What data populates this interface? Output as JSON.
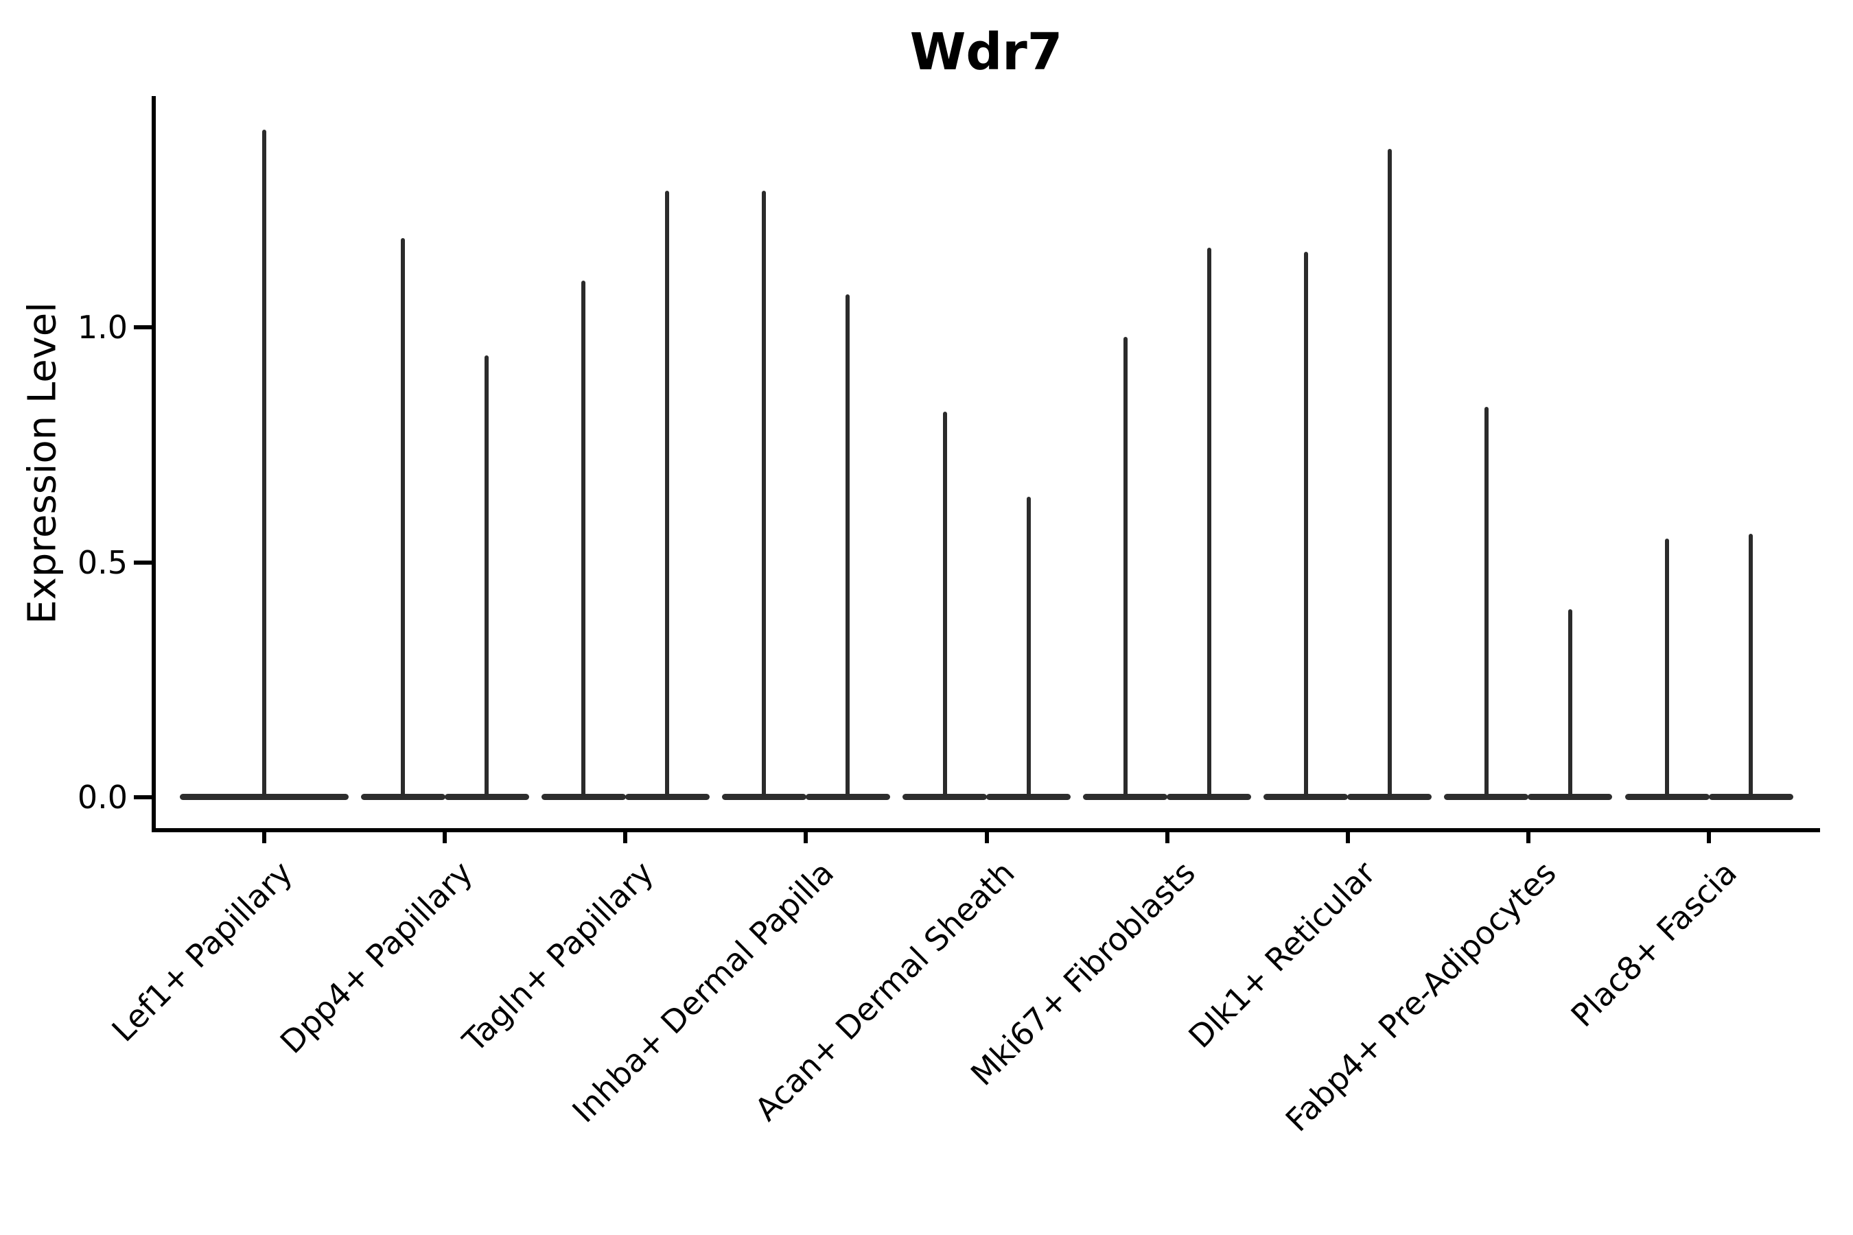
{
  "chart_data": {
    "type": "violin",
    "title": "Wdr7",
    "xlabel": "",
    "ylabel": "Expression Level",
    "yticks": [
      0.0,
      0.5,
      1.0
    ],
    "ylim": [
      0,
      1.49
    ],
    "grid": false,
    "legend_position": "none",
    "categories": [
      "Lef1+ Papillary",
      "Dpp4+ Papillary",
      "Tagln+ Papillary",
      "Inhba+ Dermal Papilla",
      "Acan+ Dermal Sheath",
      "Mki67+ Fibroblasts",
      "Dlk1+ Reticular",
      "Fabp4+ Pre-Adipocytes",
      "Plac8+ Fascia"
    ],
    "violins": [
      {
        "category": "Lef1+ Papillary",
        "violin_maxima": [
          1.42
        ]
      },
      {
        "category": "Dpp4+ Papillary",
        "violin_maxima": [
          1.19,
          0.94
        ]
      },
      {
        "category": "Tagln+ Papillary",
        "violin_maxima": [
          1.1,
          1.29
        ]
      },
      {
        "category": "Inhba+ Dermal Papilla",
        "violin_maxima": [
          1.29,
          1.07
        ]
      },
      {
        "category": "Acan+ Dermal Sheath",
        "violin_maxima": [
          0.82,
          0.64
        ]
      },
      {
        "category": "Mki67+ Fibroblasts",
        "violin_maxima": [
          0.98,
          1.17
        ]
      },
      {
        "category": "Dlk1+ Reticular",
        "violin_maxima": [
          1.16,
          1.38
        ]
      },
      {
        "category": "Fabp4+ Pre-Adipocytes",
        "violin_maxima": [
          0.83,
          0.4
        ]
      },
      {
        "category": "Plac8+ Fascia",
        "violin_maxima": [
          0.55,
          0.56
        ]
      }
    ],
    "violin_baseline_value": 0.0,
    "colors": {
      "violin": "#2d2d2d",
      "axis": "#000000",
      "text": "#000000",
      "background": "#ffffff"
    }
  }
}
